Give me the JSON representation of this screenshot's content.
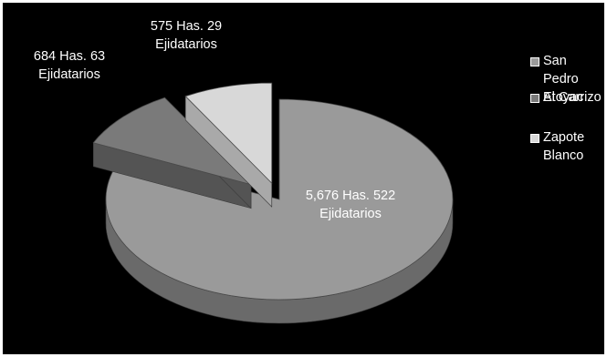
{
  "chart_data": {
    "type": "pie",
    "variant": "3d-exploded",
    "categories": [
      "San Pedro Atoyac",
      "El Carrizo",
      "Zapote Blanco"
    ],
    "values": [
      5676,
      684,
      575
    ],
    "ejidatarios": [
      522,
      63,
      29
    ],
    "labels": [
      [
        "5,676 Has.  522",
        "Ejidatarios"
      ],
      [
        "684 Has. 63",
        "Ejidatarios"
      ],
      [
        "575 Has. 29",
        "Ejidatarios"
      ]
    ],
    "legend": [
      [
        "San Pedro",
        "Atoyac"
      ],
      [
        "El Carrizo"
      ],
      [
        "Zapote",
        "Blanco"
      ]
    ],
    "legend_position": "right",
    "colors": [
      "#9a9a9a",
      "#7a7a7a",
      "#d8d8d8"
    ],
    "side_colors": [
      "#6a6a6a",
      "#545454",
      "#a9a9a9"
    ],
    "background": "#000000"
  }
}
